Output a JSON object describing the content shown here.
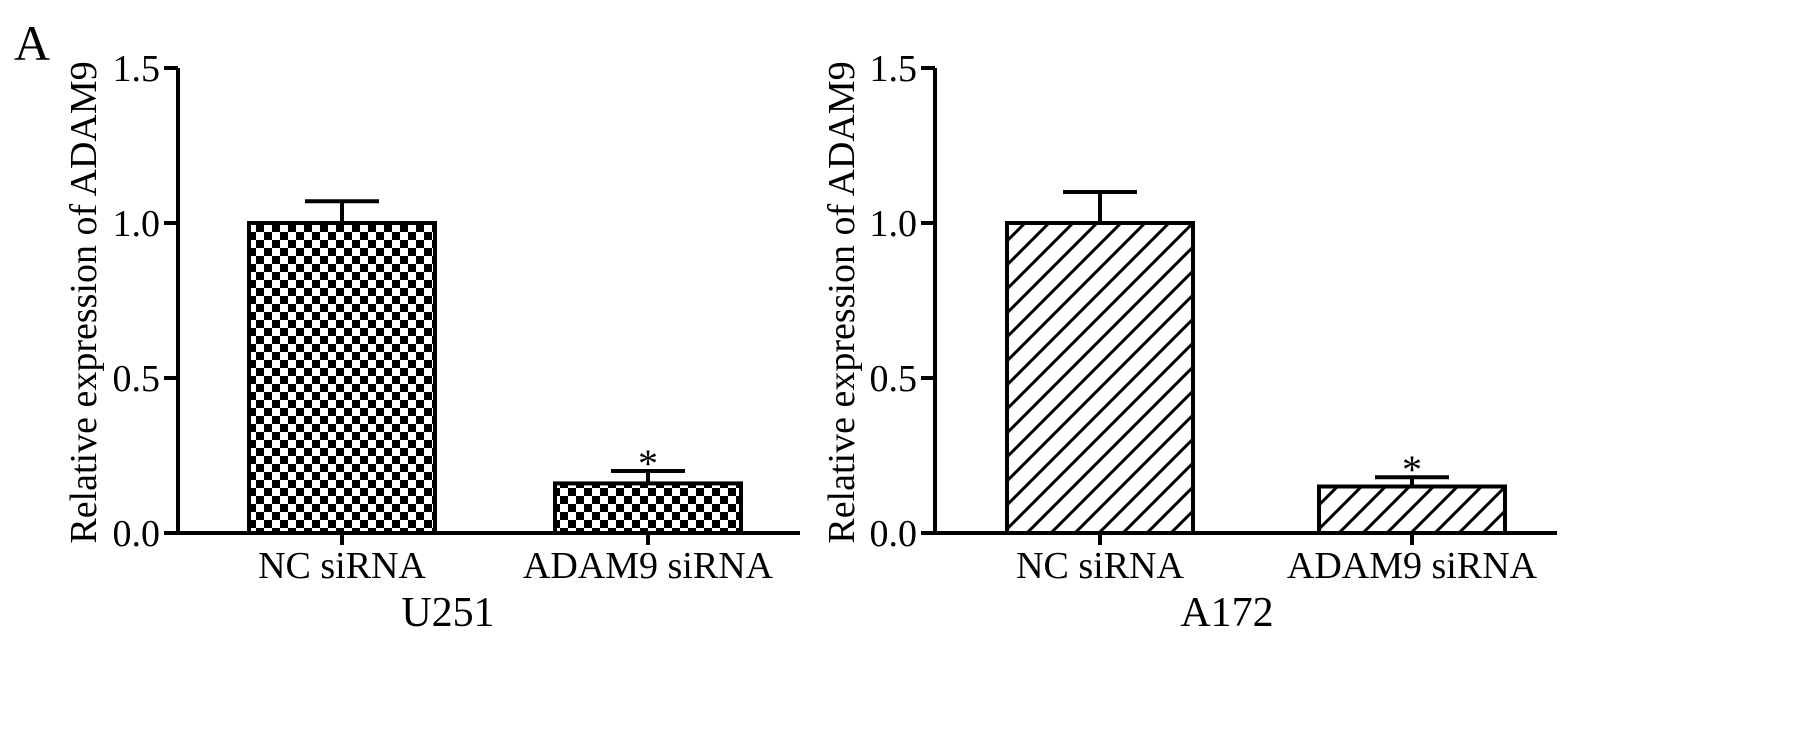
{
  "figure": {
    "panel_label": "A"
  },
  "chart_data": [
    {
      "type": "bar",
      "title": "",
      "xlabel": "U251",
      "ylabel": "Relative expression of ADAM9",
      "categories": [
        "NC siRNA",
        "ADAM9 siRNA"
      ],
      "values": [
        1.0,
        0.16
      ],
      "error": [
        0.07,
        0.04
      ],
      "annotations": [
        "",
        "*"
      ],
      "ylim": [
        0,
        1.5
      ],
      "yticks": [
        "0.0",
        "0.5",
        "1.0",
        "1.5"
      ],
      "bar_pattern": "checkerboard",
      "grid": false,
      "legend": "none"
    },
    {
      "type": "bar",
      "title": "",
      "xlabel": "A172",
      "ylabel": "Relative expression of ADAM9",
      "categories": [
        "NC siRNA",
        "ADAM9 siRNA"
      ],
      "values": [
        1.0,
        0.15
      ],
      "error": [
        0.1,
        0.03
      ],
      "annotations": [
        "",
        "*"
      ],
      "ylim": [
        0,
        1.5
      ],
      "yticks": [
        "0.0",
        "0.5",
        "1.0",
        "1.5"
      ],
      "bar_pattern": "diagonal-hatch",
      "grid": false,
      "legend": "none"
    }
  ]
}
